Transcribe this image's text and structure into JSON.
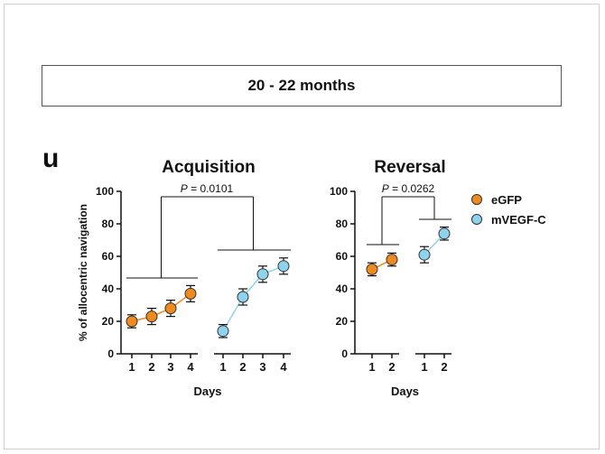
{
  "header": {
    "title": "20 - 22 months"
  },
  "panel_letter": "u",
  "legend": [
    {
      "label": "eGFP",
      "color": "#F08A1E"
    },
    {
      "label": "mVEGF-C",
      "color": "#8ED3EE"
    }
  ],
  "chart_data": [
    {
      "type": "scatter",
      "title": "Acquisition",
      "ylabel": "% of allocentric navigation",
      "xlabel": "Days",
      "ylim": [
        0,
        100
      ],
      "yticks": [
        0,
        20,
        40,
        60,
        80,
        100
      ],
      "p_label": "P",
      "p_value": " = 0.0101",
      "series": [
        {
          "name": "eGFP",
          "color": "#F08A1E",
          "x": [
            "1",
            "2",
            "3",
            "4"
          ],
          "values": [
            20,
            23,
            28,
            37
          ],
          "errors": [
            4,
            5,
            5,
            5
          ]
        },
        {
          "name": "mVEGF-C",
          "color": "#8ED3EE",
          "x": [
            "1",
            "2",
            "3",
            "4"
          ],
          "values": [
            14,
            35,
            49,
            54
          ],
          "errors": [
            4,
            5,
            5,
            5
          ]
        }
      ]
    },
    {
      "type": "scatter",
      "title": "Reversal",
      "ylabel": "",
      "xlabel": "Days",
      "ylim": [
        0,
        100
      ],
      "yticks": [
        0,
        20,
        40,
        60,
        80,
        100
      ],
      "p_label": "P",
      "p_value": " = 0.0262",
      "series": [
        {
          "name": "eGFP",
          "color": "#F08A1E",
          "x": [
            "1",
            "2"
          ],
          "values": [
            52,
            58
          ],
          "errors": [
            4,
            4
          ]
        },
        {
          "name": "mVEGF-C",
          "color": "#8ED3EE",
          "x": [
            "1",
            "2"
          ],
          "values": [
            61,
            74
          ],
          "errors": [
            5,
            4
          ]
        }
      ]
    }
  ]
}
